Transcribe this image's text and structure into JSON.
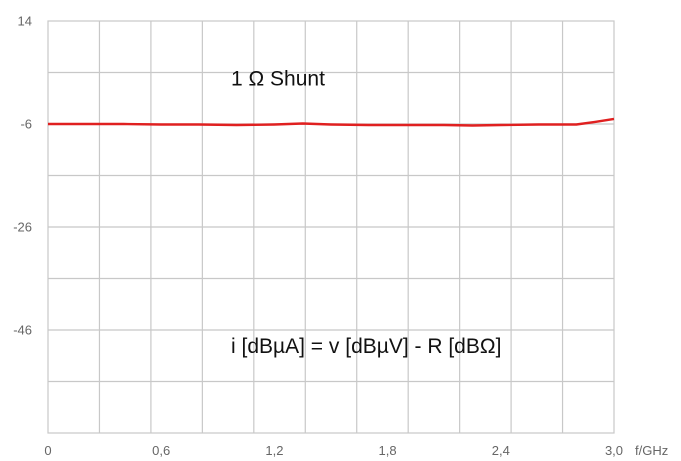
{
  "chart_data": {
    "type": "line",
    "title": "",
    "xlabel": "",
    "ylabel": "",
    "x_unit": "f/GHz",
    "xlim": [
      0,
      3.0
    ],
    "ylim": [
      -66,
      14
    ],
    "x_ticks": [
      0,
      0.6,
      1.2,
      1.8,
      2.4,
      3.0
    ],
    "x_tick_labels": [
      "0",
      "0,6",
      "1,2",
      "1,8",
      "2,4",
      "3,0"
    ],
    "y_ticks": [
      14,
      -6,
      -26,
      -46
    ],
    "y_tick_labels": [
      "14",
      "-6",
      "-26",
      "-46"
    ],
    "grid": true,
    "legend": "none",
    "colors": {
      "series": "#e02020",
      "grid": "#c8c8c8",
      "text": "#666666"
    },
    "series": [
      {
        "name": "",
        "x": [
          0,
          0.2,
          0.4,
          0.6,
          0.8,
          1.0,
          1.2,
          1.35,
          1.5,
          1.7,
          1.9,
          2.1,
          2.25,
          2.4,
          2.6,
          2.8,
          2.9,
          3.0
        ],
        "y": [
          -6.0,
          -6.0,
          -6.0,
          -6.1,
          -6.1,
          -6.2,
          -6.1,
          -5.9,
          -6.1,
          -6.2,
          -6.2,
          -6.2,
          -6.3,
          -6.2,
          -6.1,
          -6.1,
          -5.6,
          -5.0
        ]
      }
    ],
    "annotations": [
      {
        "text": "1 Ω Shunt",
        "x": 0.97,
        "y": 1.5
      },
      {
        "text": "i [dBµA] = v [dBµV] - R [dBΩ]",
        "x": 0.97,
        "y": -50.5
      }
    ]
  }
}
